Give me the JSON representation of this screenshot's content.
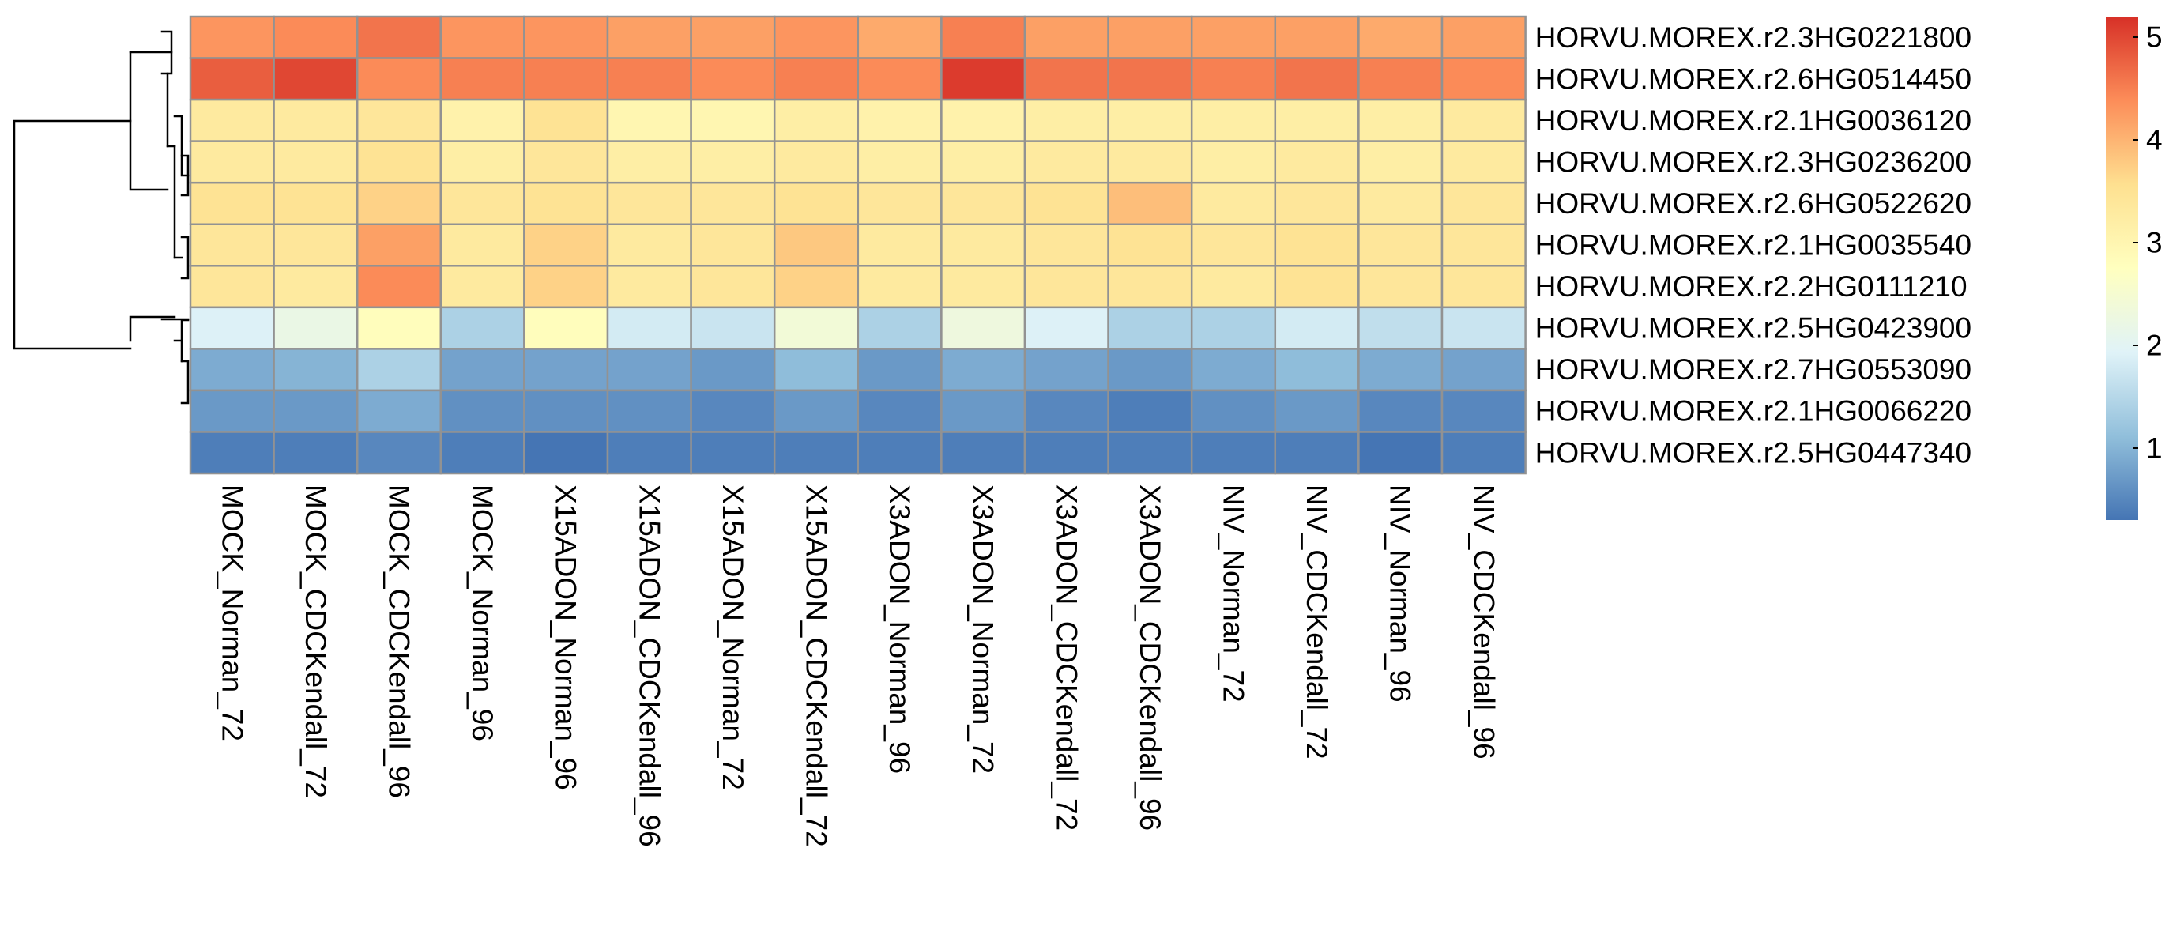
{
  "chart_data": {
    "type": "heatmap",
    "title": "",
    "xlabel": "",
    "ylabel": "",
    "columns": [
      "MOCK_Norman_72",
      "MOCK_CDCKendall_72",
      "MOCK_CDCKendall_96",
      "MOCK_Norman_96",
      "X15ADON_Norman_96",
      "X15ADON_CDCKendall_96",
      "X15ADON_Norman_72",
      "X15ADON_CDCKendall_72",
      "X3ADON_Norman_96",
      "X3ADON_Norman_72",
      "X3ADON_CDCKendall_72",
      "X3ADON_CDCKendall_96",
      "NIV_Norman_72",
      "NIV_CDCKendall_72",
      "NIV_Norman_96",
      "NIV_CDCKendall_96"
    ],
    "rows": [
      "HORVU.MOREX.r2.3HG0221800",
      "HORVU.MOREX.r2.6HG0514450",
      "HORVU.MOREX.r2.1HG0036120",
      "HORVU.MOREX.r2.3HG0236200",
      "HORVU.MOREX.r2.6HG0522620",
      "HORVU.MOREX.r2.1HG0035540",
      "HORVU.MOREX.r2.2HG0111210",
      "HORVU.MOREX.r2.5HG0423900",
      "HORVU.MOREX.r2.7HG0553090",
      "HORVU.MOREX.r2.1HG0066220",
      "HORVU.MOREX.r2.5HG0447340"
    ],
    "values": [
      [
        4.3,
        4.4,
        4.6,
        4.3,
        4.3,
        4.2,
        4.2,
        4.3,
        4.1,
        4.5,
        4.2,
        4.2,
        4.2,
        4.2,
        4.1,
        4.2
      ],
      [
        4.8,
        5.0,
        4.4,
        4.5,
        4.5,
        4.5,
        4.4,
        4.5,
        4.4,
        5.1,
        4.6,
        4.6,
        4.5,
        4.6,
        4.5,
        4.4
      ],
      [
        3.3,
        3.3,
        3.4,
        3.1,
        3.5,
        3.0,
        3.0,
        3.2,
        3.1,
        3.1,
        3.2,
        3.2,
        3.2,
        3.2,
        3.2,
        3.3
      ],
      [
        3.3,
        3.3,
        3.5,
        3.2,
        3.4,
        3.2,
        3.2,
        3.3,
        3.2,
        3.2,
        3.3,
        3.3,
        3.2,
        3.3,
        3.2,
        3.3
      ],
      [
        3.5,
        3.5,
        3.7,
        3.4,
        3.5,
        3.4,
        3.4,
        3.5,
        3.4,
        3.4,
        3.5,
        3.9,
        3.3,
        3.4,
        3.3,
        3.4
      ],
      [
        3.4,
        3.4,
        4.2,
        3.3,
        3.7,
        3.3,
        3.4,
        3.8,
        3.3,
        3.3,
        3.4,
        3.5,
        3.4,
        3.5,
        3.4,
        3.4
      ],
      [
        3.4,
        3.3,
        4.4,
        3.3,
        3.7,
        3.3,
        3.4,
        3.7,
        3.3,
        3.3,
        3.4,
        3.4,
        3.3,
        3.5,
        3.4,
        3.4
      ],
      [
        1.9,
        2.2,
        2.8,
        1.4,
        2.8,
        1.8,
        1.7,
        2.4,
        1.4,
        2.3,
        1.9,
        1.4,
        1.4,
        1.8,
        1.6,
        1.7
      ],
      [
        0.9,
        1.0,
        1.4,
        0.8,
        0.8,
        0.8,
        0.7,
        1.1,
        0.7,
        0.9,
        0.8,
        0.7,
        0.9,
        1.1,
        0.9,
        0.8
      ],
      [
        0.7,
        0.7,
        0.9,
        0.6,
        0.6,
        0.6,
        0.5,
        0.7,
        0.5,
        0.7,
        0.5,
        0.4,
        0.6,
        0.7,
        0.5,
        0.5
      ],
      [
        0.4,
        0.4,
        0.5,
        0.4,
        0.3,
        0.4,
        0.4,
        0.4,
        0.4,
        0.4,
        0.4,
        0.4,
        0.4,
        0.4,
        0.3,
        0.4
      ]
    ],
    "color_scale": {
      "min": 0.3,
      "max": 5.2,
      "colors": [
        "#4575B4",
        "#91BFDB",
        "#E0F3F8",
        "#FFFFBF",
        "#FEE090",
        "#FC8D59",
        "#D73027"
      ],
      "ticks": [
        1,
        2,
        3,
        4,
        5
      ],
      "tick_labels": [
        "1",
        "2",
        "3",
        "4",
        "5"
      ]
    },
    "grid": true,
    "cell_border_color": "#929292",
    "legend": "right",
    "row_dendrogram": true
  }
}
